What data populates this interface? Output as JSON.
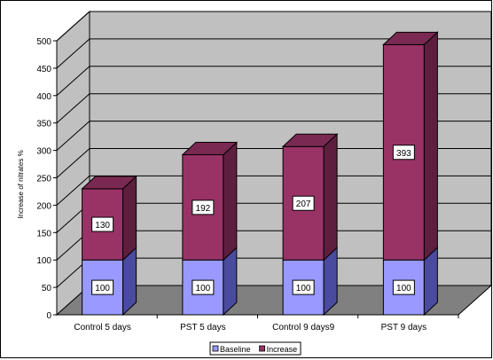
{
  "chart_data": {
    "type": "bar",
    "stacked": true,
    "three_d": true,
    "categories": [
      "Control 5 days",
      "PST 5 days",
      "Control 9 days9",
      "PST 9 days"
    ],
    "series": [
      {
        "name": "Baseline",
        "values": [
          100,
          100,
          100,
          100
        ],
        "color": "#9999ff",
        "side_color": "#4a4a9e",
        "top_color": "#b3b3ff"
      },
      {
        "name": "Increase",
        "values": [
          130,
          192,
          207,
          393
        ],
        "color": "#993366",
        "side_color": "#5e1f3f",
        "top_color": "#7a2a52"
      }
    ],
    "ylabel": "Increase of nitrates %",
    "ylim": [
      0,
      500
    ],
    "yticks": [
      0,
      50,
      100,
      150,
      200,
      250,
      300,
      350,
      400,
      450,
      500
    ],
    "grid": true,
    "legend_position": "bottom",
    "wall_color": "#c0c0c0",
    "floor_color": "#808080"
  }
}
